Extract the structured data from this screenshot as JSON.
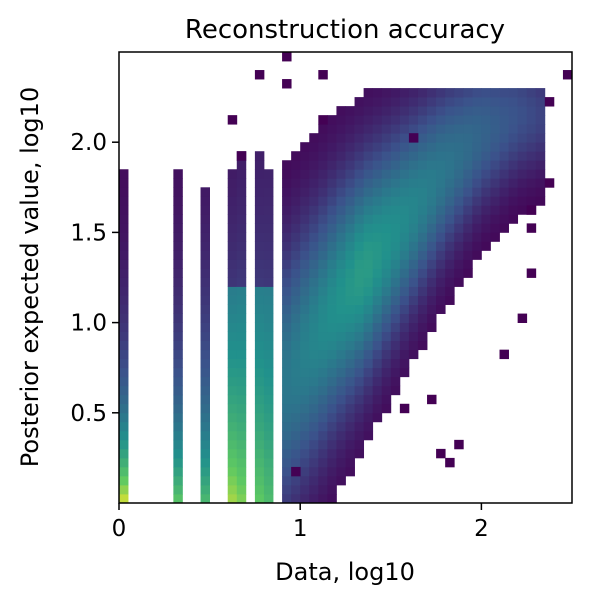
{
  "chart_data": {
    "type": "heatmap",
    "title": "Reconstruction accuracy",
    "xlabel": "Data, log10",
    "ylabel": "Posterior expected value, log10",
    "xlim": [
      0,
      2.5
    ],
    "ylim": [
      0,
      2.5
    ],
    "x_ticks": [
      {
        "value": 0,
        "label": "0"
      },
      {
        "value": 1,
        "label": "1"
      },
      {
        "value": 2,
        "label": "2"
      }
    ],
    "y_ticks": [
      {
        "value": 0.5,
        "label": "0.5"
      },
      {
        "value": 1.0,
        "label": "1.0"
      },
      {
        "value": 1.5,
        "label": "1.5"
      },
      {
        "value": 2.0,
        "label": "2.0"
      }
    ],
    "colormap": "viridis",
    "grid": false,
    "bins": 50,
    "discrete_data_columns": [
      0,
      0.301,
      0.477,
      0.602,
      0.699,
      0.778,
      0.845
    ],
    "data_columns_density": [
      {
        "x": 0,
        "y_max": 1.82,
        "note_peak": 0.0
      },
      {
        "x": 0.301,
        "y_max": 1.82
      },
      {
        "x": 0.477,
        "y_max": 1.72
      },
      {
        "x": 0.602,
        "y_max": 1.82
      },
      {
        "x": 0.699,
        "y_max": 1.92
      },
      {
        "x": 0.778,
        "y_max": 1.92
      },
      {
        "x": 0.845,
        "y_max": 1.82
      }
    ],
    "continuous_trend": [
      {
        "x": 1.0,
        "y_center": 0.8
      },
      {
        "x": 1.2,
        "y_center": 1.1
      },
      {
        "x": 1.4,
        "y_center": 1.35
      },
      {
        "x": 1.6,
        "y_center": 1.6
      },
      {
        "x": 1.8,
        "y_center": 1.85
      },
      {
        "x": 2.0,
        "y_center": 2.05
      },
      {
        "x": 2.2,
        "y_center": 2.15
      }
    ],
    "outlier_points": [
      [
        0.95,
        2.45
      ],
      [
        0.78,
        2.38
      ],
      [
        0.95,
        2.32
      ],
      [
        1.12,
        2.35
      ],
      [
        2.45,
        2.35
      ],
      [
        0.62,
        2.15
      ],
      [
        1.12,
        2.15
      ],
      [
        2.35,
        2.2
      ],
      [
        1.62,
        2.0
      ],
      [
        0.68,
        1.92
      ],
      [
        2.35,
        1.75
      ],
      [
        2.3,
        1.6
      ],
      [
        2.25,
        1.52
      ],
      [
        2.3,
        1.28
      ],
      [
        2.22,
        1.0
      ],
      [
        2.12,
        0.82
      ],
      [
        1.72,
        0.6
      ],
      [
        1.58,
        0.5
      ],
      [
        1.85,
        0.35
      ],
      [
        1.75,
        0.3
      ],
      [
        1.82,
        0.22
      ],
      [
        0.98,
        0.18
      ]
    ]
  }
}
